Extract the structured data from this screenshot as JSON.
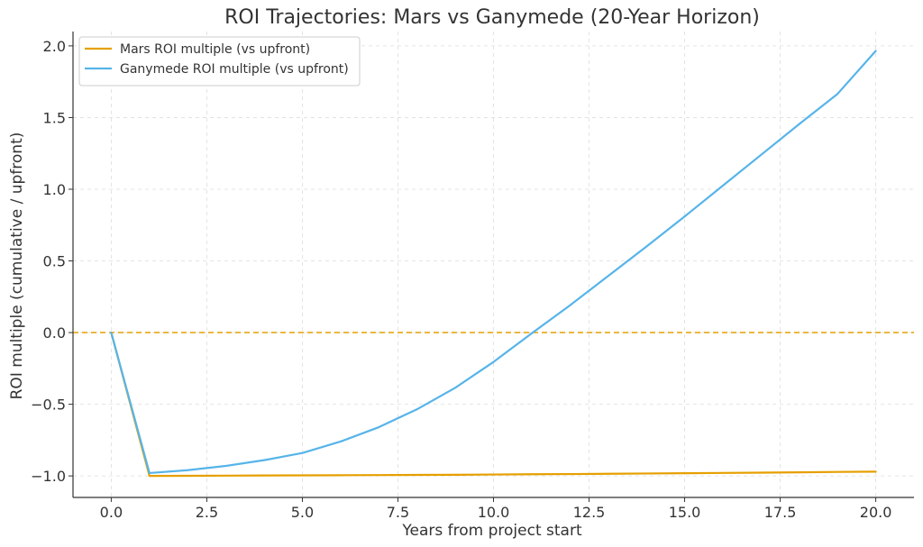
{
  "chart_data": {
    "type": "line",
    "title": "ROI Trajectories: Mars vs Ganymede (20-Year Horizon)",
    "xlabel": "Years from project start",
    "ylabel": "ROI multiple (cumulative / upfront)",
    "xlim": [
      -1,
      21
    ],
    "ylim": [
      -1.15,
      2.1
    ],
    "xticks": [
      0,
      2.5,
      5,
      7.5,
      10,
      12.5,
      15,
      17.5,
      20
    ],
    "xtick_labels": [
      "0.0",
      "2.5",
      "5.0",
      "7.5",
      "10.0",
      "12.5",
      "15.0",
      "17.5",
      "20.0"
    ],
    "yticks": [
      -1,
      -0.5,
      0,
      0.5,
      1,
      1.5,
      2
    ],
    "ytick_labels": [
      "−1.0",
      "−0.5",
      "0.0",
      "0.5",
      "1.0",
      "1.5",
      "2.0"
    ],
    "grid": true,
    "legend_position": "top-left",
    "reference_line": {
      "y": 0,
      "style": "dashed",
      "color": "#e69f00"
    },
    "x": [
      0,
      1,
      2,
      3,
      4,
      5,
      6,
      7,
      8,
      9,
      10,
      11,
      12,
      13,
      14,
      15,
      16,
      17,
      18,
      19,
      20
    ],
    "series": [
      {
        "name": "Mars ROI multiple (vs upfront)",
        "color": "#e69f00",
        "values": [
          0,
          -1.0,
          -0.999,
          -0.998,
          -0.997,
          -0.996,
          -0.995,
          -0.994,
          -0.993,
          -0.992,
          -0.99,
          -0.988,
          -0.987,
          -0.985,
          -0.983,
          -0.981,
          -0.979,
          -0.977,
          -0.975,
          -0.972,
          -0.97
        ]
      },
      {
        "name": "Ganymede ROI multiple (vs upfront)",
        "color": "#56b4e9",
        "values": [
          0,
          -0.98,
          -0.96,
          -0.93,
          -0.89,
          -0.84,
          -0.76,
          -0.66,
          -0.535,
          -0.385,
          -0.205,
          -0.005,
          0.19,
          0.395,
          0.6,
          0.81,
          1.025,
          1.24,
          1.455,
          1.665,
          1.965
        ]
      }
    ]
  }
}
